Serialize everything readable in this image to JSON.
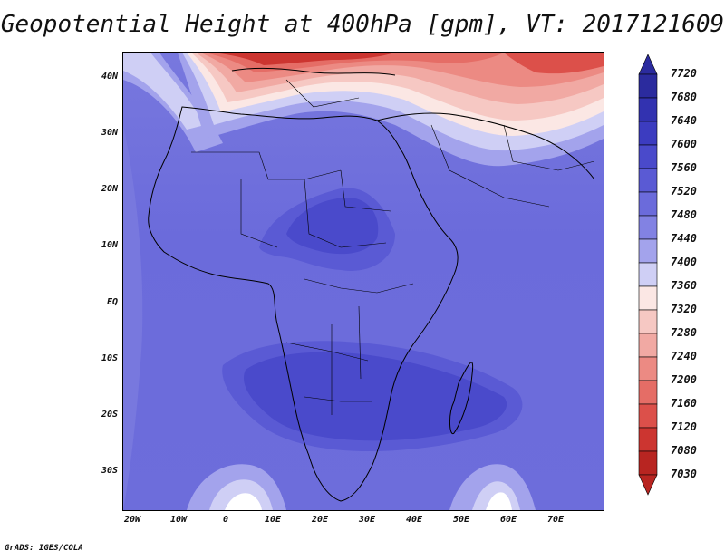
{
  "title": "Geopotential Height at 400hPa [gpm], VT: 2017121609",
  "footer": "GrADS: IGES/COLA",
  "map": {
    "region": "Africa",
    "lat_labels": [
      "40N",
      "30N",
      "20N",
      "10N",
      "EQ",
      "10S",
      "20S",
      "30S"
    ],
    "lon_labels": [
      "20W",
      "10W",
      "0",
      "10E",
      "20E",
      "30E",
      "40E",
      "50E",
      "60E",
      "70E"
    ]
  },
  "colorbar": {
    "levels": [
      "7720",
      "7680",
      "7640",
      "7600",
      "7560",
      "7520",
      "7480",
      "7440",
      "7400",
      "7360",
      "7320",
      "7280",
      "7240",
      "7200",
      "7160",
      "7120",
      "7080",
      "7030"
    ],
    "colors": [
      "#2b2b9e",
      "#3232b0",
      "#3c3cc0",
      "#4a4acb",
      "#5a5ad4",
      "#6b6bdb",
      "#8282e3",
      "#a3a3ec",
      "#cfcff5",
      "#fbe7e4",
      "#f6c8c3",
      "#f1a9a3",
      "#ec8a83",
      "#e56d66",
      "#dc504a",
      "#cc3530",
      "#b82521"
    ]
  }
}
